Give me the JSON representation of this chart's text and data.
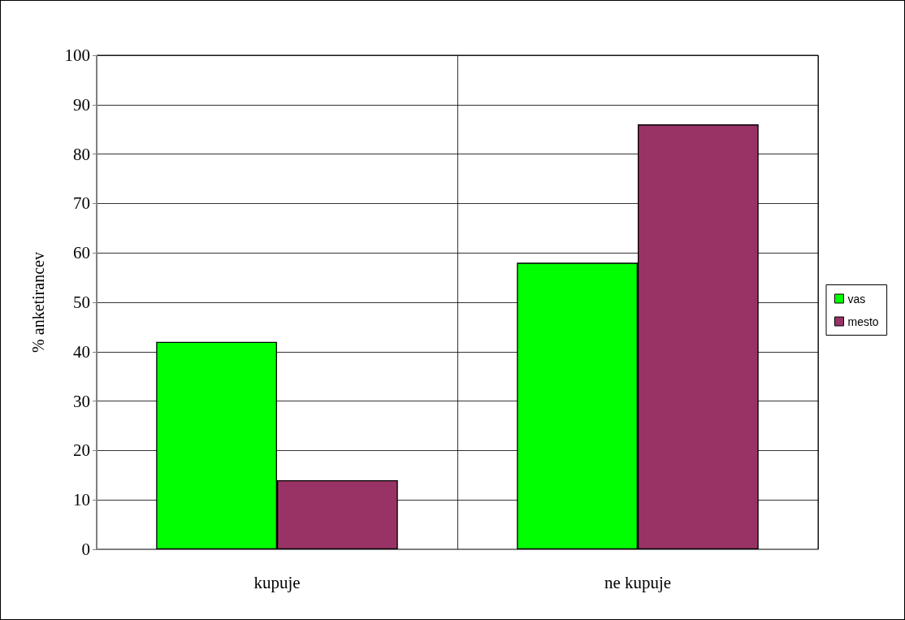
{
  "chart_data": {
    "type": "bar",
    "ylabel": "% anketirancev",
    "categories": [
      "kupuje",
      "ne kupuje"
    ],
    "series": [
      {
        "name": "vas",
        "color": "#00ff00",
        "values": [
          42,
          58
        ]
      },
      {
        "name": "mesto",
        "color": "#993366",
        "values": [
          14,
          86
        ]
      }
    ],
    "ylim": [
      0,
      100
    ],
    "yticks": [
      0,
      10,
      20,
      30,
      40,
      50,
      60,
      70,
      80,
      90,
      100
    ],
    "grid": true,
    "legend": "right"
  }
}
